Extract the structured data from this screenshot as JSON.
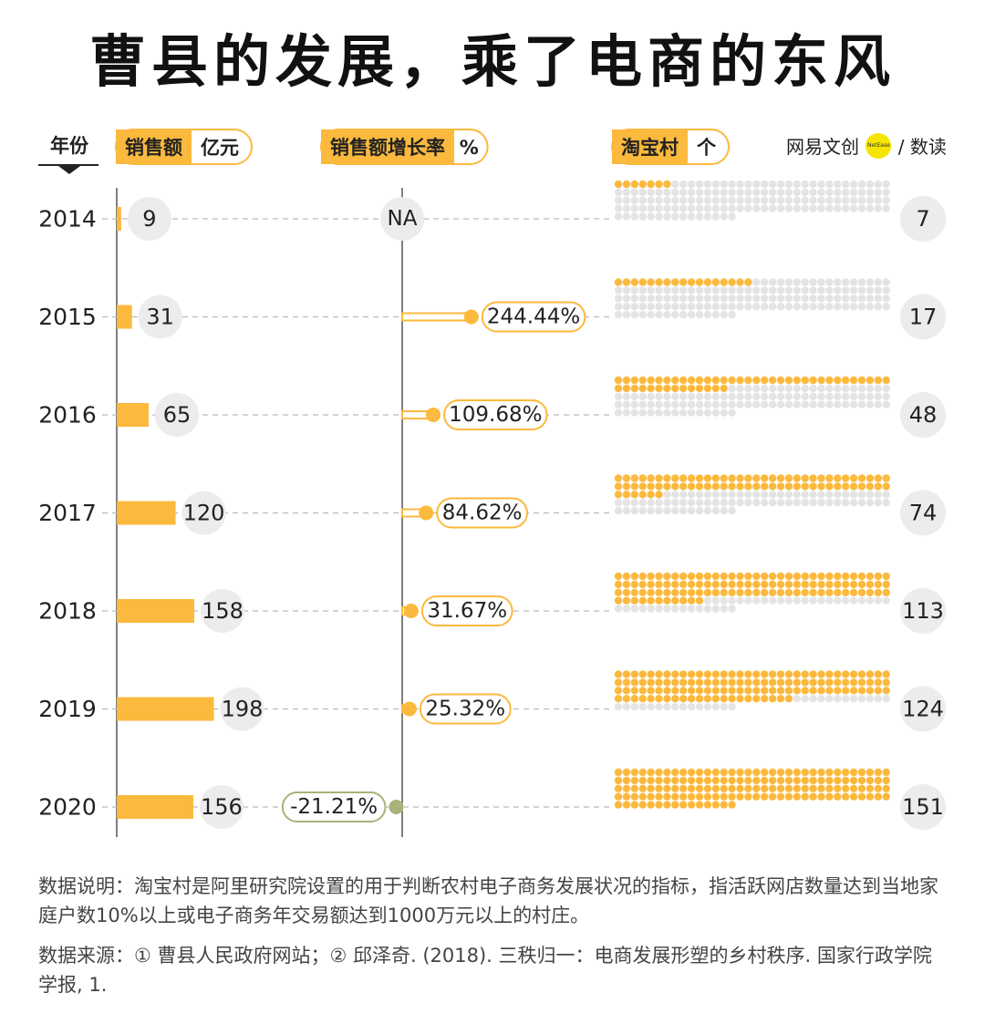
{
  "title": "曹县的发展，乘了电商的东风",
  "brand": {
    "part1": "网易文创",
    "badge": "NetEase",
    "part2": "/ 数读"
  },
  "headers": {
    "year": "年份",
    "sales": "销售额",
    "sales_unit": "亿元",
    "growth": "销售额增长率",
    "growth_unit": "%",
    "villages": "淘宝村",
    "villages_unit": "个"
  },
  "colors": {
    "accent": "#fbb93d",
    "negative": "#a7b37a",
    "empty": "#e4e4e4",
    "grey_circle": "#ececec"
  },
  "chart_data": {
    "type": "bar",
    "categories": [
      "2014",
      "2015",
      "2016",
      "2017",
      "2018",
      "2019",
      "2020"
    ],
    "series": [
      {
        "name": "销售额",
        "unit": "亿元",
        "values": [
          9,
          31,
          65,
          120,
          158,
          198,
          156
        ]
      },
      {
        "name": "销售额增长率",
        "unit": "%",
        "values": [
          null,
          244.44,
          109.68,
          84.62,
          31.67,
          25.32,
          -21.21
        ],
        "labels": [
          "NA",
          "244.44%",
          "109.68%",
          "84.62%",
          "31.67%",
          "25.32%",
          "-21.21%"
        ]
      },
      {
        "name": "淘宝村",
        "unit": "个",
        "values": [
          7,
          17,
          48,
          74,
          113,
          124,
          151
        ]
      }
    ],
    "dot_grid": {
      "columns": 34,
      "total": 151
    }
  },
  "notes": [
    "数据说明：淘宝村是阿里研究院设置的用于判断农村电子商务发展状况的指标，指活跃网店数量达到当地家庭户数10%以上或电子商务年交易额达到1000万元以上的村庄。",
    "数据来源：① 曹县人民政府网站；② 邱泽奇. (2018). 三秩归一：电商发展形塑的乡村秩序. 国家行政学院学报, 1."
  ]
}
